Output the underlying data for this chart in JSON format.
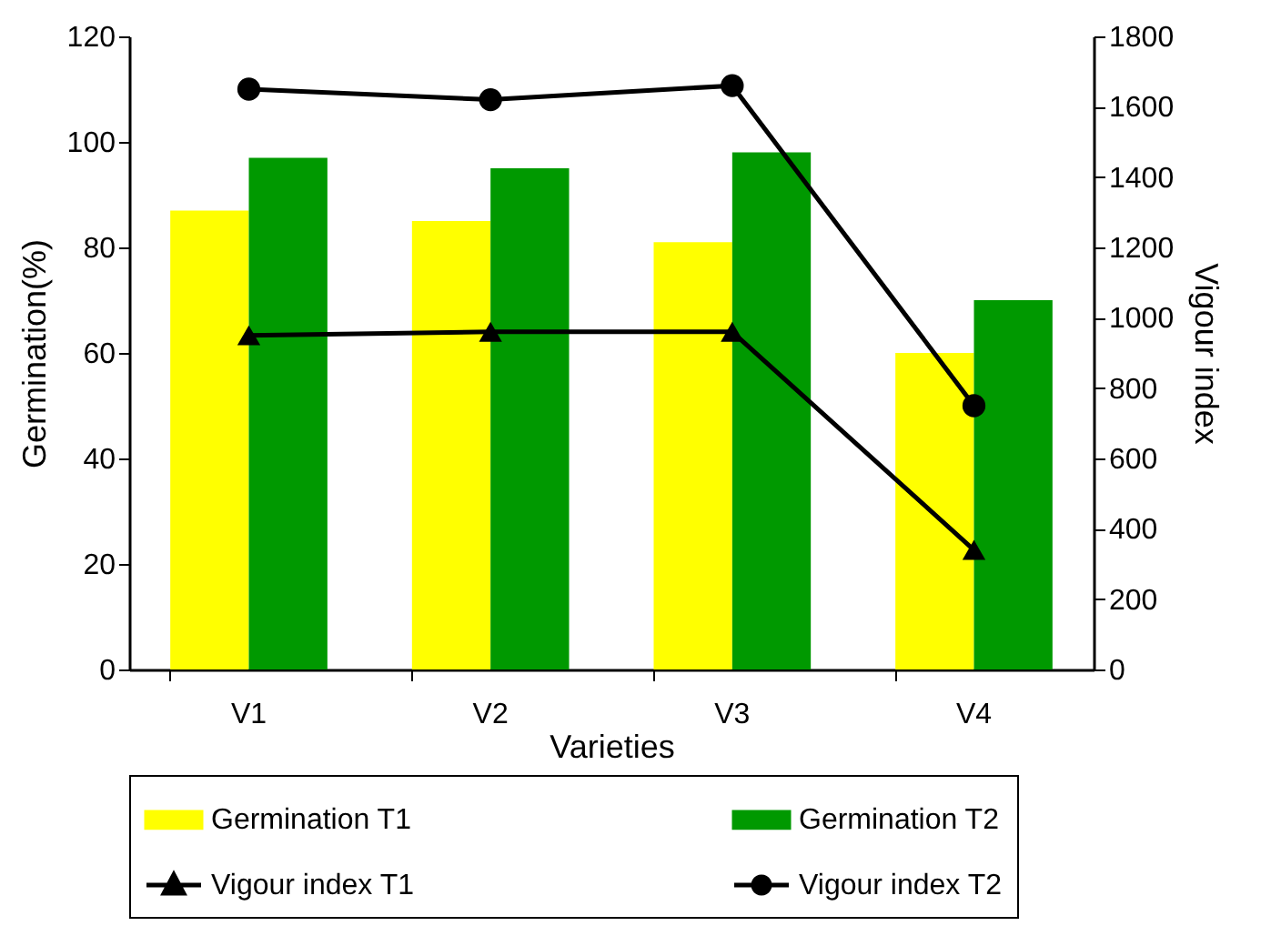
{
  "chart_data": {
    "type": "bar",
    "xlabel": "Varieties",
    "ylabel": "Germination(%)",
    "y2label": "Vigour index",
    "categories": [
      "V1",
      "V2",
      "V3",
      "V4"
    ],
    "series": [
      {
        "name": "Germination T1",
        "color": "#ffff00",
        "values": [
          87,
          85,
          81,
          60
        ]
      },
      {
        "name": "Germination T2",
        "color": "#009900",
        "values": [
          97,
          95,
          98,
          70
        ]
      },
      {
        "name": "Vigour index T1",
        "type": "line",
        "axis": "y2",
        "color": "#000000",
        "marker": "triangle",
        "values": [
          950,
          960,
          960,
          340
        ]
      },
      {
        "name": "Vigour index T2",
        "type": "line",
        "axis": "y2",
        "color": "#000000",
        "marker": "circle",
        "values": [
          1650,
          1620,
          1660,
          750
        ]
      }
    ],
    "ylim": [
      0,
      120
    ],
    "yticks": [
      0,
      20,
      40,
      60,
      80,
      100,
      120
    ],
    "y2lim": [
      0,
      1800
    ],
    "y2ticks": [
      0,
      200,
      400,
      600,
      800,
      1000,
      1200,
      1400,
      1600,
      1800
    ],
    "grid": false,
    "legend": "bottom"
  }
}
